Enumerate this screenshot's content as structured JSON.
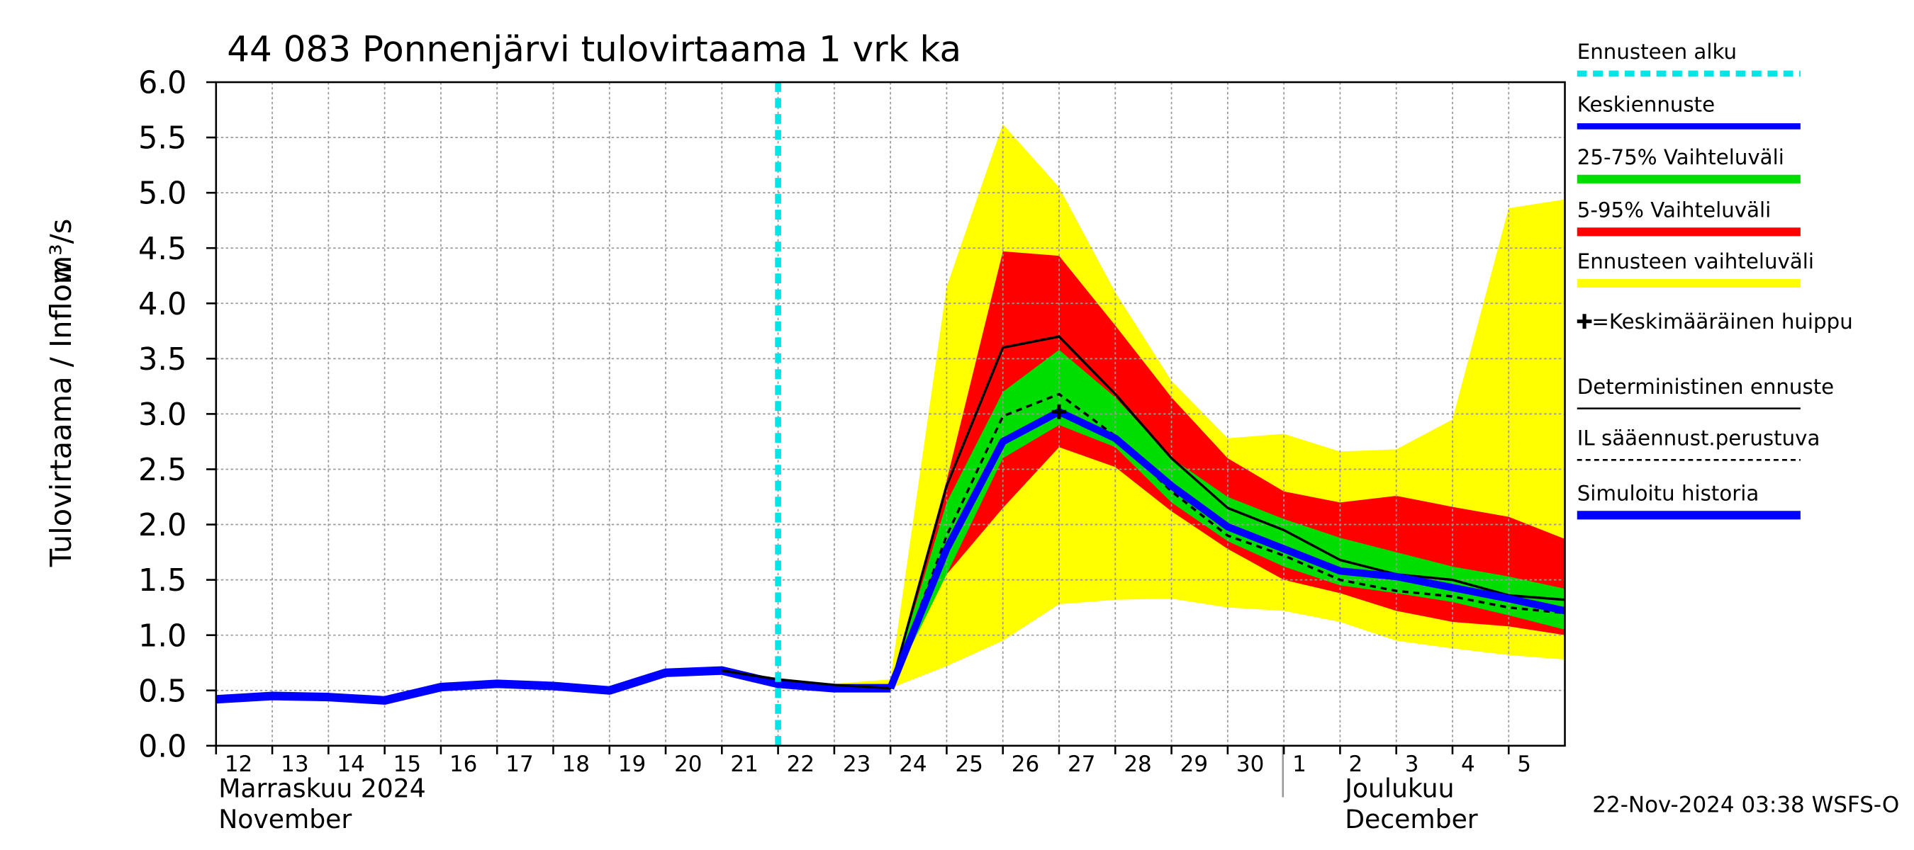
{
  "chart_data": {
    "type": "line",
    "title": "44 083 Ponnenjärvi tulovirtaama 1 vrk ka",
    "y_label": "Tulovirtaama / Inflow",
    "y_unit": "m³/s",
    "xlim": [
      0,
      24
    ],
    "ylim": [
      0,
      6
    ],
    "grid": true,
    "yticks": [
      {
        "value": 0,
        "label": "0.0"
      },
      {
        "value": 0.5,
        "label": "0.5"
      },
      {
        "value": 1,
        "label": "1.0"
      },
      {
        "value": 1.5,
        "label": "1.5"
      },
      {
        "value": 2,
        "label": "2.0"
      },
      {
        "value": 2.5,
        "label": "2.5"
      },
      {
        "value": 3,
        "label": "3.0"
      },
      {
        "value": 3.5,
        "label": "3.5"
      },
      {
        "value": 4,
        "label": "4.0"
      },
      {
        "value": 4.5,
        "label": "4.5"
      },
      {
        "value": 5,
        "label": "5.0"
      },
      {
        "value": 5.5,
        "label": "5.5"
      },
      {
        "value": 6,
        "label": "6.0"
      }
    ],
    "xticks": [
      {
        "value": 0,
        "label": "12"
      },
      {
        "value": 1,
        "label": "13"
      },
      {
        "value": 2,
        "label": "14"
      },
      {
        "value": 3,
        "label": "15"
      },
      {
        "value": 4,
        "label": "16"
      },
      {
        "value": 5,
        "label": "17"
      },
      {
        "value": 6,
        "label": "18"
      },
      {
        "value": 7,
        "label": "19"
      },
      {
        "value": 8,
        "label": "20"
      },
      {
        "value": 9,
        "label": "21"
      },
      {
        "value": 10,
        "label": "22"
      },
      {
        "value": 11,
        "label": "23"
      },
      {
        "value": 12,
        "label": "24"
      },
      {
        "value": 13,
        "label": "25"
      },
      {
        "value": 14,
        "label": "26"
      },
      {
        "value": 15,
        "label": "27"
      },
      {
        "value": 16,
        "label": "28"
      },
      {
        "value": 17,
        "label": "29"
      },
      {
        "value": 18,
        "label": "30"
      },
      {
        "value": 19,
        "label": "1"
      },
      {
        "value": 20,
        "label": "2"
      },
      {
        "value": 21,
        "label": "3"
      },
      {
        "value": 22,
        "label": "4"
      },
      {
        "value": 23,
        "label": "5"
      }
    ],
    "months": [
      {
        "x": 0,
        "label": "Marraskuu 2024",
        "label_en": "November"
      },
      {
        "x": 19,
        "label": "Joulukuu",
        "label_en": "December"
      }
    ],
    "forecast_start": {
      "name": "Ennusteen alku",
      "x": 10,
      "color": "#00e5e5"
    },
    "bands": [
      {
        "name": "Ennusteen vaihteluväli",
        "color": "#ffff00",
        "x": [
          10,
          11,
          12,
          13,
          14,
          15,
          16,
          17,
          18,
          19,
          20,
          21,
          22,
          23,
          24
        ],
        "upper": [
          0.6,
          0.56,
          0.6,
          4.15,
          5.62,
          5.05,
          4.1,
          3.3,
          2.78,
          2.82,
          2.66,
          2.68,
          2.95,
          4.86,
          4.94
        ],
        "lower": [
          0.55,
          0.52,
          0.52,
          0.72,
          0.95,
          1.28,
          1.32,
          1.33,
          1.25,
          1.22,
          1.12,
          0.95,
          0.88,
          0.82,
          0.78
        ]
      },
      {
        "name": "5-95% Vaihteluväli",
        "color": "#ff0000",
        "x": [
          10,
          11,
          12,
          13,
          14,
          15,
          16,
          17,
          18,
          19,
          20,
          21,
          22,
          23,
          24
        ],
        "upper": [
          0.58,
          0.54,
          0.55,
          2.4,
          4.47,
          4.43,
          3.8,
          3.15,
          2.6,
          2.3,
          2.2,
          2.26,
          2.16,
          2.07,
          1.87
        ],
        "lower": [
          0.55,
          0.52,
          0.52,
          1.55,
          2.15,
          2.7,
          2.52,
          2.12,
          1.78,
          1.5,
          1.38,
          1.22,
          1.12,
          1.08,
          1.0
        ]
      },
      {
        "name": "25-75% Vaihteluväli",
        "color": "#00dd00",
        "x": [
          10,
          11,
          12,
          13,
          14,
          15,
          16,
          17,
          18,
          19,
          20,
          21,
          22,
          23,
          24
        ],
        "upper": [
          0.57,
          0.53,
          0.53,
          2.2,
          3.2,
          3.58,
          3.15,
          2.6,
          2.25,
          2.05,
          1.88,
          1.75,
          1.62,
          1.53,
          1.42
        ],
        "lower": [
          0.56,
          0.52,
          0.52,
          1.55,
          2.6,
          2.9,
          2.7,
          2.2,
          1.85,
          1.62,
          1.45,
          1.38,
          1.3,
          1.18,
          1.05
        ]
      }
    ],
    "series": [
      {
        "name": "Simuloitu historia",
        "color": "#0000ff",
        "width": 7,
        "x": [
          0,
          1,
          2,
          3,
          4,
          5,
          6,
          7,
          8,
          9,
          10,
          11,
          12
        ],
        "values": [
          0.42,
          0.45,
          0.44,
          0.41,
          0.53,
          0.56,
          0.54,
          0.5,
          0.66,
          0.68,
          0.56,
          0.52,
          0.52
        ]
      },
      {
        "name": "Deterministinen ennuste",
        "color": "#000000",
        "width": 2,
        "x": [
          9,
          10,
          11,
          12,
          13,
          14,
          15,
          16,
          17,
          18,
          19,
          20,
          21,
          22,
          23,
          24
        ],
        "values": [
          0.68,
          0.6,
          0.55,
          0.52,
          2.35,
          3.6,
          3.7,
          3.18,
          2.6,
          2.15,
          1.95,
          1.68,
          1.55,
          1.5,
          1.36,
          1.32
        ]
      },
      {
        "name": "IL sääennust.perustuva",
        "color": "#000000",
        "width": 2,
        "dash": true,
        "x": [
          12,
          13,
          14,
          15,
          16,
          17,
          18,
          19,
          20,
          21,
          22,
          23,
          24
        ],
        "values": [
          0.52,
          1.9,
          2.98,
          3.18,
          2.8,
          2.3,
          1.9,
          1.72,
          1.5,
          1.4,
          1.35,
          1.25,
          1.2
        ]
      },
      {
        "name": "Keskiennuste",
        "color": "#0000ff",
        "width": 6,
        "x": [
          12,
          13,
          14,
          15,
          16,
          17,
          18,
          19,
          20,
          21,
          22,
          23,
          24
        ],
        "values": [
          0.52,
          1.78,
          2.75,
          3.02,
          2.78,
          2.35,
          1.98,
          1.78,
          1.58,
          1.53,
          1.43,
          1.33,
          1.22
        ]
      }
    ],
    "peak": {
      "name": "=Keskimääräinen huippu",
      "x": 15,
      "value": 3.02,
      "color": "#000000"
    },
    "footer": "22-Nov-2024 03:38 WSFS-O"
  }
}
